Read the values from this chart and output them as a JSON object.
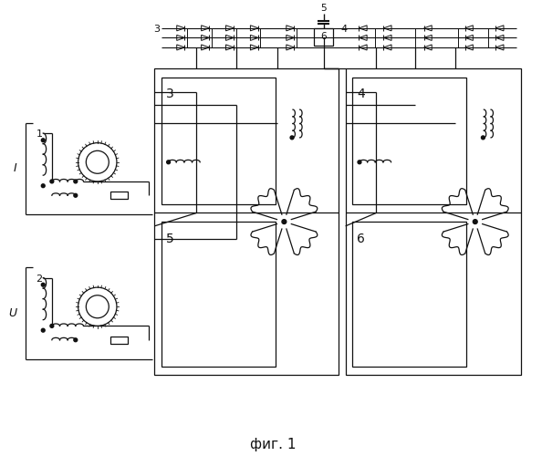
{
  "title": "фиг. 1",
  "bg": "#ffffff",
  "lc": "#111111",
  "lw": 0.9,
  "fig_w": 5.94,
  "fig_h": 5.0,
  "dpi": 100
}
